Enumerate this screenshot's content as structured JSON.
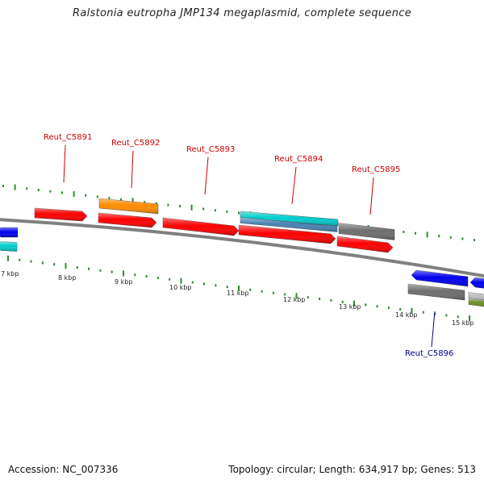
{
  "title": "Ralstonia eutropha JMP134 megaplasmid, complete sequence",
  "footer": {
    "accession": "Accession: NC_007336",
    "summary": "Topology: circular; Length: 634,917 bp; Genes: 513"
  },
  "scale_labels": [
    "7 kbp",
    "8 kbp",
    "9 kbp",
    "10 kbp",
    "11 kbp",
    "12 kbp",
    "13 kbp",
    "14 kbp",
    "15 kbp"
  ],
  "gene_labels": [
    {
      "text": "Reut_C5891",
      "strand": "forward"
    },
    {
      "text": "Reut_C5892",
      "strand": "forward"
    },
    {
      "text": "Reut_C5893",
      "strand": "forward"
    },
    {
      "text": "Reut_C5894",
      "strand": "forward"
    },
    {
      "text": "Reut_C5895",
      "strand": "forward"
    },
    {
      "text": "Reut_C5896",
      "strand": "reverse"
    }
  ],
  "colors": {
    "backbone": "#808080",
    "tick": "#2e8b2e",
    "forward_label": "#cc0000",
    "reverse_label": "#00008b",
    "red_gene": "#ff0000",
    "orange_gene": "#ff8c00",
    "cyan_gene": "#00cccc",
    "steel_gene": "#4682b4",
    "gray_gene": "#6e6e6e",
    "blue_gene": "#0000ee",
    "olive_gene": "#6b8e23"
  }
}
